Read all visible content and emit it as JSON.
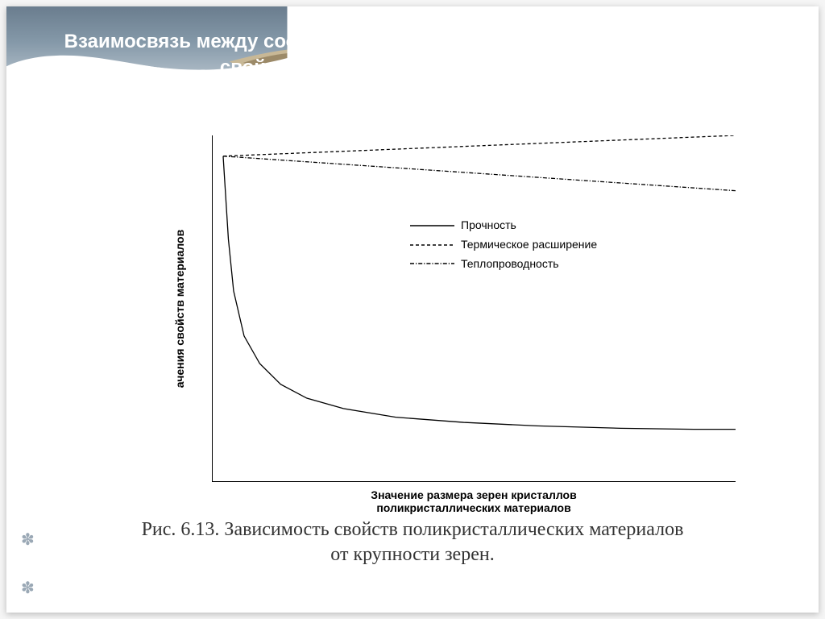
{
  "slide": {
    "title": "Взаимосвязь между составом, микро-, макроструктурой и физическими свойствами строительных материалов.",
    "caption_line1": "Рис. 6.13. Зависимость свойств  поликристаллических материалов",
    "caption_line2": "от крупности зерен.",
    "bullet_glyph": "✽"
  },
  "background": {
    "gradient_top": "#6a7d8e",
    "gradient_mid": "#8498a8",
    "gradient_bottom": "#a8b6c2",
    "white": "#ffffff",
    "tan_light": "#c8b896",
    "tan_dark": "#9c8a68"
  },
  "chart": {
    "type": "line",
    "xlabel_line1": "Значение размера зерен кристаллов",
    "xlabel_line2": "поликристаллических материалов",
    "ylabel": "ачения свойств материалов",
    "background_color": "#ffffff",
    "axis_color": "#000000",
    "line_color": "#000000",
    "line_width": 1.3,
    "xlim": [
      0,
      100
    ],
    "ylim": [
      0,
      100
    ],
    "series": [
      {
        "name": "Прочность",
        "dash": "solid",
        "points": [
          [
            2,
            94
          ],
          [
            3,
            70
          ],
          [
            4,
            55
          ],
          [
            6,
            42
          ],
          [
            9,
            34
          ],
          [
            13,
            28
          ],
          [
            18,
            24
          ],
          [
            25,
            21
          ],
          [
            35,
            18.5
          ],
          [
            48,
            17
          ],
          [
            62,
            16
          ],
          [
            78,
            15.3
          ],
          [
            92,
            15
          ],
          [
            100,
            15
          ]
        ]
      },
      {
        "name": "Термическое расширение",
        "dash": "dashed",
        "points": [
          [
            2,
            94
          ],
          [
            100,
            100
          ]
        ]
      },
      {
        "name": "Теплопроводность",
        "dash": "dashdot",
        "points": [
          [
            2,
            94
          ],
          [
            100,
            84
          ]
        ]
      }
    ],
    "legend": {
      "position": "center-right",
      "items": [
        {
          "label": "Прочность",
          "dash": "solid"
        },
        {
          "label": "Термическое расширение",
          "dash": "dashed"
        },
        {
          "label": "Теплопроводность",
          "dash": "dashdot"
        }
      ]
    }
  }
}
